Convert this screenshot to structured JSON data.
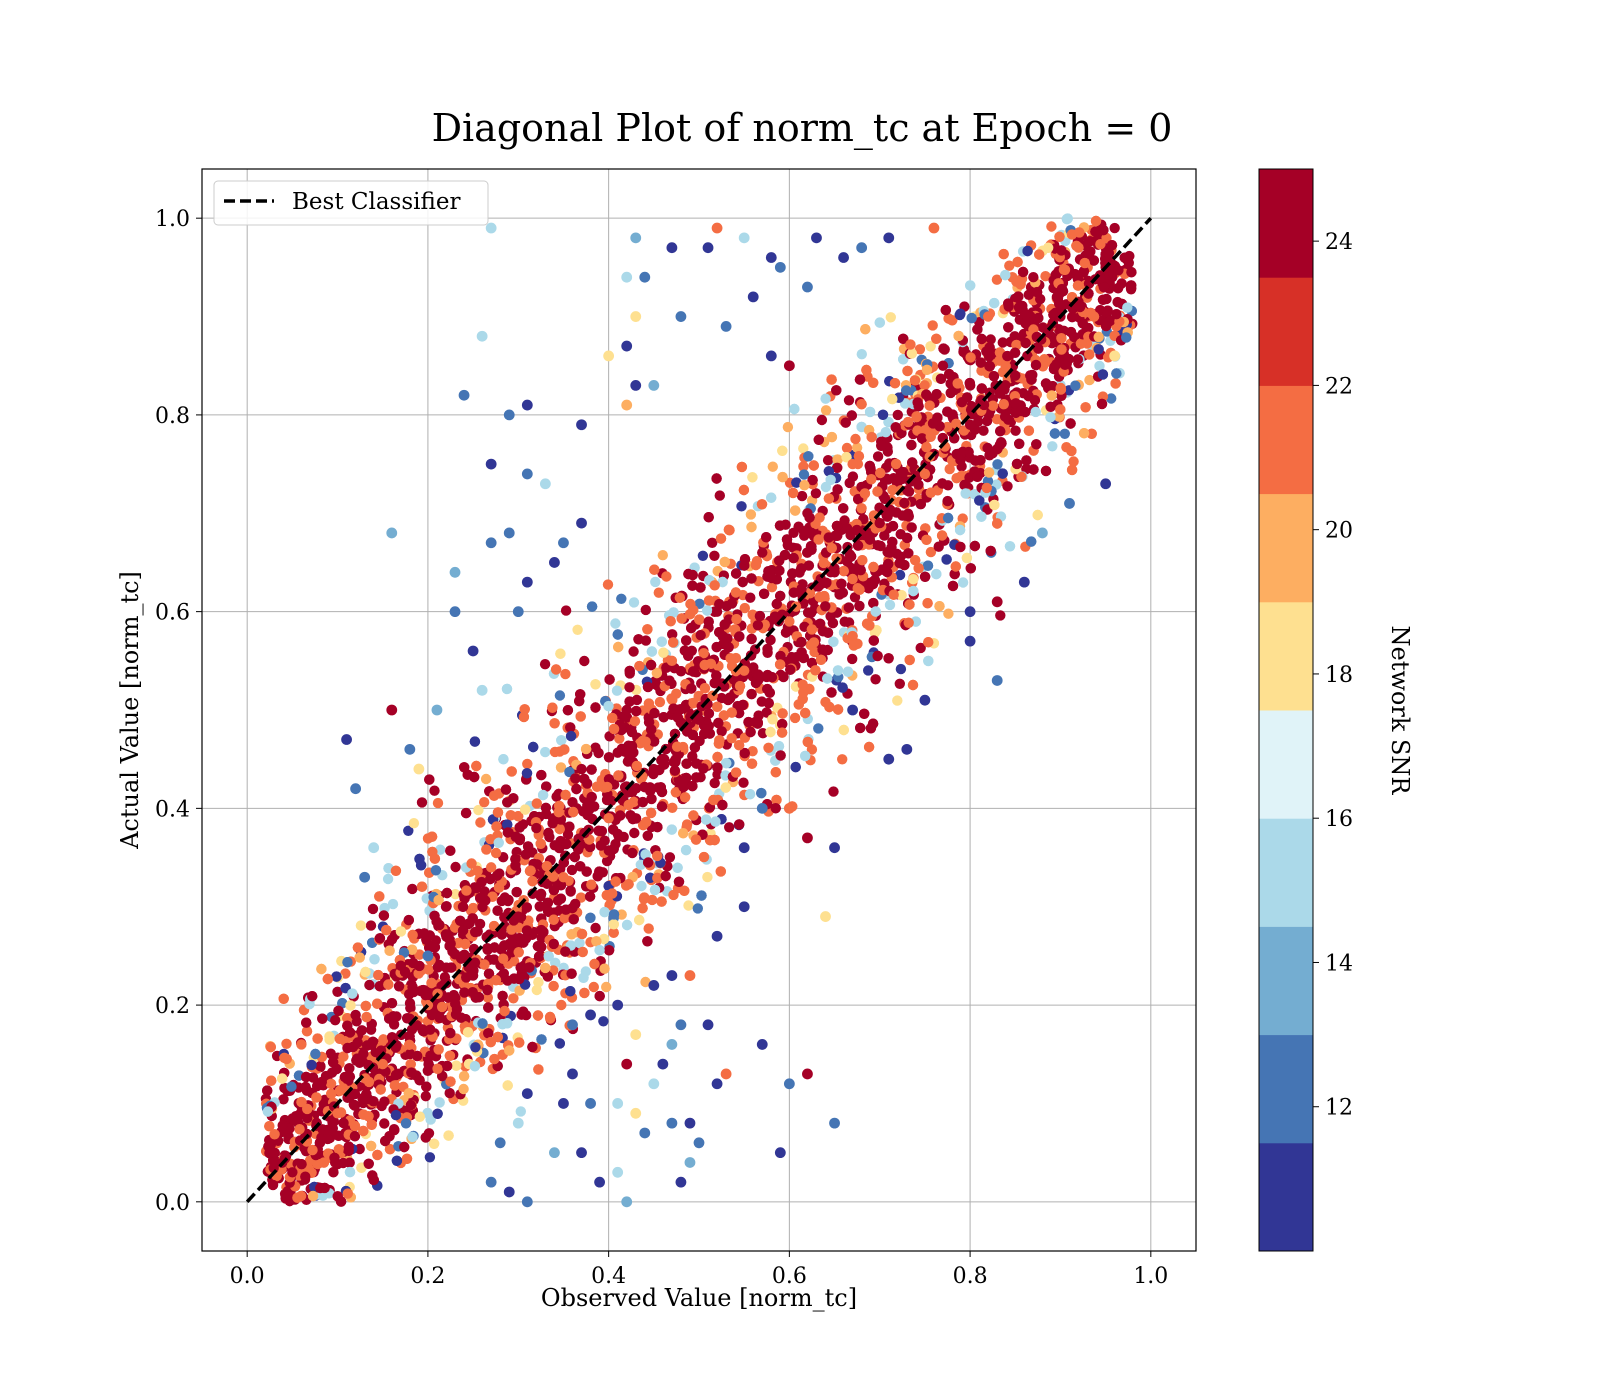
{
  "chart_data": {
    "type": "scatter",
    "title": "Diagonal Plot of norm_tc at Epoch = 0",
    "xlabel": "Observed Value [norm_tc]",
    "ylabel": "Actual Value [norm_tc]",
    "xlim": [
      -0.05,
      1.05
    ],
    "ylim": [
      -0.05,
      1.05
    ],
    "x_ticks": [
      "0.0",
      "0.2",
      "0.4",
      "0.6",
      "0.8",
      "1.0"
    ],
    "y_ticks": [
      "0.0",
      "0.2",
      "0.4",
      "0.6",
      "0.8",
      "1.0"
    ],
    "grid": true,
    "legend": {
      "position": "top-left",
      "entries": [
        "Best Classifier"
      ]
    },
    "reference_line": {
      "name": "Best Classifier",
      "style": "dashed",
      "color": "#000000",
      "x": [
        0,
        1
      ],
      "y": [
        0,
        1
      ]
    },
    "colorbar": {
      "label": "Network SNR",
      "range": [
        10,
        25
      ],
      "ticks": [
        "12",
        "14",
        "16",
        "18",
        "20",
        "22",
        "24"
      ],
      "bins": [
        {
          "from": 10,
          "to": 11.5,
          "color": "#313695"
        },
        {
          "from": 11.5,
          "to": 13,
          "color": "#4575b4"
        },
        {
          "from": 13,
          "to": 14.5,
          "color": "#74add1"
        },
        {
          "from": 14.5,
          "to": 16,
          "color": "#abd9e9"
        },
        {
          "from": 16,
          "to": 17.5,
          "color": "#e0f3f8"
        },
        {
          "from": 17.5,
          "to": 19,
          "color": "#fee090"
        },
        {
          "from": 19,
          "to": 20.5,
          "color": "#fdae61"
        },
        {
          "from": 20.5,
          "to": 22,
          "color": "#f46d43"
        },
        {
          "from": 22,
          "to": 23.5,
          "color": "#d73027"
        },
        {
          "from": 23.5,
          "to": 25,
          "color": "#a50026"
        }
      ]
    },
    "series": [
      {
        "values_note": "",
        "points": [
          {
            "x": 0.27,
            "y": 0.99,
            "snr": 15
          },
          {
            "x": 0.26,
            "y": 0.88,
            "snr": 15
          },
          {
            "x": 0.24,
            "y": 0.82,
            "snr": 12
          },
          {
            "x": 0.31,
            "y": 0.81,
            "snr": 11
          },
          {
            "x": 0.29,
            "y": 0.8,
            "snr": 13
          },
          {
            "x": 0.27,
            "y": 0.75,
            "snr": 11
          },
          {
            "x": 0.31,
            "y": 0.74,
            "snr": 12
          },
          {
            "x": 0.33,
            "y": 0.73,
            "snr": 15
          },
          {
            "x": 0.16,
            "y": 0.68,
            "snr": 14
          },
          {
            "x": 0.29,
            "y": 0.68,
            "snr": 12
          },
          {
            "x": 0.27,
            "y": 0.67,
            "snr": 12
          },
          {
            "x": 0.23,
            "y": 0.64,
            "snr": 14
          },
          {
            "x": 0.11,
            "y": 0.47,
            "snr": 11
          },
          {
            "x": 0.16,
            "y": 0.5,
            "snr": 24
          },
          {
            "x": 0.12,
            "y": 0.42,
            "snr": 12
          },
          {
            "x": 0.37,
            "y": 0.79,
            "snr": 11
          },
          {
            "x": 0.43,
            "y": 0.98,
            "snr": 14
          },
          {
            "x": 0.47,
            "y": 0.97,
            "snr": 11
          },
          {
            "x": 0.51,
            "y": 0.97,
            "snr": 11
          },
          {
            "x": 0.52,
            "y": 0.99,
            "snr": 22
          },
          {
            "x": 0.55,
            "y": 0.98,
            "snr": 15
          },
          {
            "x": 0.58,
            "y": 0.96,
            "snr": 11
          },
          {
            "x": 0.59,
            "y": 0.95,
            "snr": 12
          },
          {
            "x": 0.42,
            "y": 0.94,
            "snr": 15
          },
          {
            "x": 0.44,
            "y": 0.94,
            "snr": 12
          },
          {
            "x": 0.43,
            "y": 0.9,
            "snr": 19
          },
          {
            "x": 0.48,
            "y": 0.9,
            "snr": 12
          },
          {
            "x": 0.42,
            "y": 0.87,
            "snr": 11
          },
          {
            "x": 0.4,
            "y": 0.86,
            "snr": 18
          },
          {
            "x": 0.43,
            "y": 0.83,
            "snr": 11
          },
          {
            "x": 0.45,
            "y": 0.83,
            "snr": 14
          },
          {
            "x": 0.42,
            "y": 0.81,
            "snr": 20
          },
          {
            "x": 0.63,
            "y": 0.98,
            "snr": 11
          },
          {
            "x": 0.66,
            "y": 0.96,
            "snr": 11
          },
          {
            "x": 0.68,
            "y": 0.97,
            "snr": 12
          },
          {
            "x": 0.71,
            "y": 0.98,
            "snr": 11
          },
          {
            "x": 0.76,
            "y": 0.99,
            "snr": 22
          },
          {
            "x": 0.62,
            "y": 0.93,
            "snr": 12
          },
          {
            "x": 0.56,
            "y": 0.92,
            "snr": 11
          },
          {
            "x": 0.53,
            "y": 0.89,
            "snr": 13
          },
          {
            "x": 0.6,
            "y": 0.85,
            "snr": 24
          },
          {
            "x": 0.58,
            "y": 0.86,
            "snr": 11
          },
          {
            "x": 0.21,
            "y": 0.5,
            "snr": 14
          },
          {
            "x": 0.18,
            "y": 0.46,
            "snr": 12
          },
          {
            "x": 0.19,
            "y": 0.44,
            "snr": 18
          },
          {
            "x": 0.13,
            "y": 0.33,
            "snr": 12
          },
          {
            "x": 0.14,
            "y": 0.36,
            "snr": 15
          },
          {
            "x": 0.37,
            "y": 0.69,
            "snr": 11
          },
          {
            "x": 0.35,
            "y": 0.67,
            "snr": 12
          },
          {
            "x": 0.34,
            "y": 0.65,
            "snr": 11
          },
          {
            "x": 0.31,
            "y": 0.63,
            "snr": 11
          },
          {
            "x": 0.3,
            "y": 0.6,
            "snr": 12
          },
          {
            "x": 0.23,
            "y": 0.6,
            "snr": 12
          },
          {
            "x": 0.25,
            "y": 0.56,
            "snr": 11
          },
          {
            "x": 0.26,
            "y": 0.52,
            "snr": 15
          },
          {
            "x": 0.2,
            "y": 0.25,
            "snr": 13
          },
          {
            "x": 0.62,
            "y": 0.13,
            "snr": 24
          },
          {
            "x": 0.65,
            "y": 0.08,
            "snr": 12
          },
          {
            "x": 0.6,
            "y": 0.12,
            "snr": 12
          },
          {
            "x": 0.57,
            "y": 0.16,
            "snr": 11
          },
          {
            "x": 0.59,
            "y": 0.05,
            "snr": 11
          },
          {
            "x": 0.52,
            "y": 0.12,
            "snr": 11
          },
          {
            "x": 0.53,
            "y": 0.13,
            "snr": 22
          },
          {
            "x": 0.51,
            "y": 0.18,
            "snr": 11
          },
          {
            "x": 0.47,
            "y": 0.16,
            "snr": 14
          },
          {
            "x": 0.48,
            "y": 0.18,
            "snr": 12
          },
          {
            "x": 0.46,
            "y": 0.14,
            "snr": 11
          },
          {
            "x": 0.45,
            "y": 0.12,
            "snr": 15
          },
          {
            "x": 0.47,
            "y": 0.08,
            "snr": 12
          },
          {
            "x": 0.49,
            "y": 0.08,
            "snr": 11
          },
          {
            "x": 0.5,
            "y": 0.06,
            "snr": 12
          },
          {
            "x": 0.48,
            "y": 0.02,
            "snr": 11
          },
          {
            "x": 0.49,
            "y": 0.04,
            "snr": 14
          },
          {
            "x": 0.42,
            "y": 0.14,
            "snr": 24
          },
          {
            "x": 0.41,
            "y": 0.1,
            "snr": 16
          },
          {
            "x": 0.43,
            "y": 0.09,
            "snr": 18
          },
          {
            "x": 0.44,
            "y": 0.07,
            "snr": 12
          },
          {
            "x": 0.41,
            "y": 0.03,
            "snr": 15
          },
          {
            "x": 0.42,
            "y": 0.0,
            "snr": 14
          },
          {
            "x": 0.39,
            "y": 0.02,
            "snr": 11
          },
          {
            "x": 0.38,
            "y": 0.1,
            "snr": 12
          },
          {
            "x": 0.37,
            "y": 0.05,
            "snr": 11
          },
          {
            "x": 0.35,
            "y": 0.1,
            "snr": 11
          },
          {
            "x": 0.34,
            "y": 0.05,
            "snr": 14
          },
          {
            "x": 0.36,
            "y": 0.13,
            "snr": 11
          },
          {
            "x": 0.31,
            "y": 0.0,
            "snr": 13
          },
          {
            "x": 0.29,
            "y": 0.01,
            "snr": 11
          },
          {
            "x": 0.27,
            "y": 0.02,
            "snr": 12
          },
          {
            "x": 0.28,
            "y": 0.06,
            "snr": 12
          },
          {
            "x": 0.3,
            "y": 0.08,
            "snr": 15
          },
          {
            "x": 0.31,
            "y": 0.11,
            "snr": 11
          },
          {
            "x": 0.64,
            "y": 0.29,
            "snr": 19
          },
          {
            "x": 0.65,
            "y": 0.36,
            "snr": 11
          },
          {
            "x": 0.62,
            "y": 0.37,
            "snr": 24
          },
          {
            "x": 0.6,
            "y": 0.4,
            "snr": 22
          },
          {
            "x": 0.57,
            "y": 0.4,
            "snr": 12
          },
          {
            "x": 0.71,
            "y": 0.45,
            "snr": 11
          },
          {
            "x": 0.73,
            "y": 0.46,
            "snr": 11
          },
          {
            "x": 0.67,
            "y": 0.5,
            "snr": 11
          },
          {
            "x": 0.75,
            "y": 0.51,
            "snr": 11
          },
          {
            "x": 0.83,
            "y": 0.53,
            "snr": 12
          },
          {
            "x": 0.8,
            "y": 0.57,
            "snr": 11
          },
          {
            "x": 0.8,
            "y": 0.6,
            "snr": 11
          },
          {
            "x": 0.83,
            "y": 0.61,
            "snr": 24
          },
          {
            "x": 0.86,
            "y": 0.63,
            "snr": 11
          },
          {
            "x": 0.95,
            "y": 0.73,
            "snr": 11
          },
          {
            "x": 0.91,
            "y": 0.71,
            "snr": 12
          },
          {
            "x": 0.88,
            "y": 0.68,
            "snr": 14
          },
          {
            "x": 0.96,
            "y": 0.86,
            "snr": 19
          },
          {
            "x": 0.55,
            "y": 0.36,
            "snr": 11
          },
          {
            "x": 0.52,
            "y": 0.27,
            "snr": 11
          },
          {
            "x": 0.55,
            "y": 0.3,
            "snr": 11
          },
          {
            "x": 0.49,
            "y": 0.23,
            "snr": 22
          },
          {
            "x": 0.47,
            "y": 0.23,
            "snr": 11
          },
          {
            "x": 0.45,
            "y": 0.22,
            "snr": 11
          },
          {
            "x": 0.41,
            "y": 0.2,
            "snr": 11
          },
          {
            "x": 0.43,
            "y": 0.17,
            "snr": 18
          },
          {
            "x": 0.38,
            "y": 0.19,
            "snr": 11
          },
          {
            "x": 0.36,
            "y": 0.18,
            "snr": 12
          }
        ],
        "core_band": [
          {
            "x": 0.05,
            "y": 0.03,
            "snr": 24
          },
          {
            "x": 0.08,
            "y": 0.12,
            "snr": 24
          },
          {
            "x": 0.06,
            "y": 0.16,
            "snr": 22
          },
          {
            "x": 0.1,
            "y": 0.09,
            "snr": 22
          },
          {
            "x": 0.12,
            "y": 0.19,
            "snr": 24
          },
          {
            "x": 0.15,
            "y": 0.14,
            "snr": 21
          },
          {
            "x": 0.17,
            "y": 0.24,
            "snr": 24
          },
          {
            "x": 0.2,
            "y": 0.2,
            "snr": 22
          },
          {
            "x": 0.22,
            "y": 0.3,
            "snr": 24
          },
          {
            "x": 0.25,
            "y": 0.23,
            "snr": 24
          },
          {
            "x": 0.27,
            "y": 0.34,
            "snr": 22
          },
          {
            "x": 0.3,
            "y": 0.29,
            "snr": 24
          },
          {
            "x": 0.32,
            "y": 0.38,
            "snr": 24
          },
          {
            "x": 0.35,
            "y": 0.33,
            "snr": 21
          },
          {
            "x": 0.37,
            "y": 0.44,
            "snr": 24
          },
          {
            "x": 0.4,
            "y": 0.39,
            "snr": 22
          },
          {
            "x": 0.42,
            "y": 0.5,
            "snr": 24
          },
          {
            "x": 0.45,
            "y": 0.44,
            "snr": 24
          },
          {
            "x": 0.47,
            "y": 0.55,
            "snr": 22
          },
          {
            "x": 0.5,
            "y": 0.49,
            "snr": 24
          },
          {
            "x": 0.52,
            "y": 0.6,
            "snr": 24
          },
          {
            "x": 0.55,
            "y": 0.54,
            "snr": 21
          },
          {
            "x": 0.57,
            "y": 0.66,
            "snr": 24
          },
          {
            "x": 0.6,
            "y": 0.59,
            "snr": 22
          },
          {
            "x": 0.62,
            "y": 0.7,
            "snr": 24
          },
          {
            "x": 0.65,
            "y": 0.64,
            "snr": 24
          },
          {
            "x": 0.67,
            "y": 0.75,
            "snr": 22
          },
          {
            "x": 0.7,
            "y": 0.69,
            "snr": 24
          },
          {
            "x": 0.72,
            "y": 0.8,
            "snr": 24
          },
          {
            "x": 0.75,
            "y": 0.74,
            "snr": 22
          },
          {
            "x": 0.77,
            "y": 0.85,
            "snr": 24
          },
          {
            "x": 0.8,
            "y": 0.79,
            "snr": 24
          },
          {
            "x": 0.82,
            "y": 0.9,
            "snr": 22
          },
          {
            "x": 0.85,
            "y": 0.84,
            "snr": 24
          },
          {
            "x": 0.87,
            "y": 0.94,
            "snr": 24
          },
          {
            "x": 0.9,
            "y": 0.9,
            "snr": 24
          },
          {
            "x": 0.92,
            "y": 0.97,
            "snr": 22
          },
          {
            "x": 0.95,
            "y": 0.95,
            "snr": 24
          },
          {
            "x": 0.96,
            "y": 0.99,
            "snr": 24
          }
        ]
      }
    ]
  }
}
